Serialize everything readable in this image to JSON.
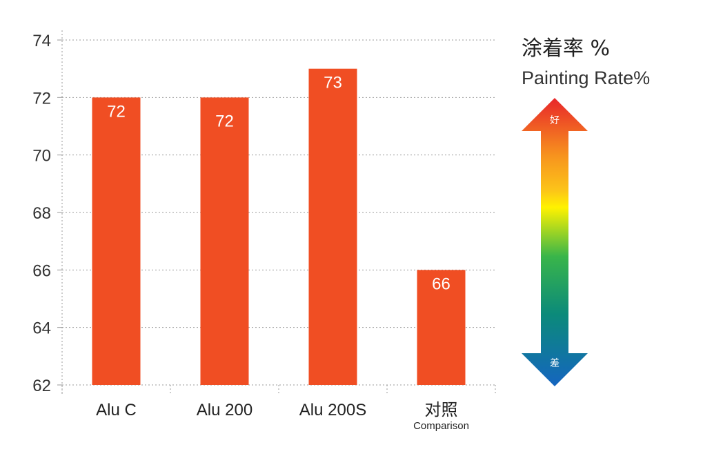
{
  "chart_data": {
    "type": "bar",
    "categories": [
      "Alu C",
      "Alu 200",
      "Alu 200S",
      "对照"
    ],
    "category_sublabels": [
      "",
      "",
      "",
      "Comparison"
    ],
    "values": [
      72,
      72,
      73,
      66
    ],
    "data_labels": [
      "72",
      "72",
      "73",
      "66"
    ],
    "ylim": [
      62,
      74
    ],
    "yticks": [
      62,
      64,
      66,
      68,
      70,
      72,
      74
    ],
    "grid": true,
    "bar_color": "#f04e23"
  },
  "legend": {
    "title": "涂着率 %",
    "subtitle": "Painting Rate%",
    "good_label": "好",
    "bad_label": "差",
    "gradient_colors": [
      "#e8262a",
      "#f7931e",
      "#fff200",
      "#39b54a",
      "#0b8a7a",
      "#1565c0"
    ]
  }
}
